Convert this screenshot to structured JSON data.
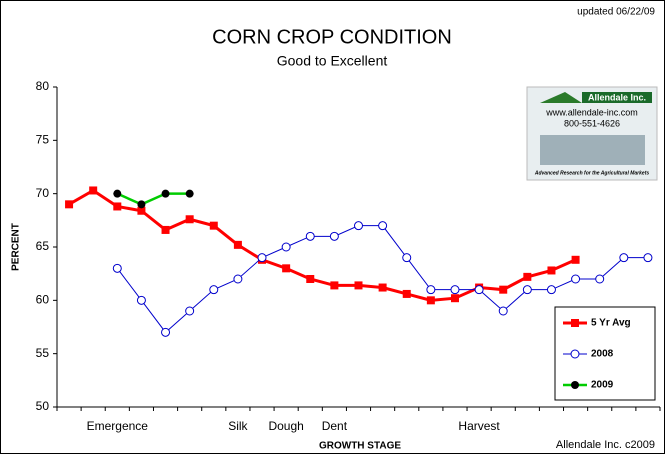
{
  "chart_data": {
    "type": "line",
    "title": "CORN CROP CONDITION",
    "subtitle": "Good to Excellent",
    "note": "updated 06/22/09",
    "credit": "Allendale Inc. c2009",
    "x_label": "GROWTH STAGE",
    "y_label": "PERCENT",
    "logo": {
      "name": "Allendale Inc.",
      "url": "www.allendale-inc.com",
      "phone": "800-551-4626",
      "tagline": "Advanced Research for the Agricultural Markets"
    },
    "categories": [
      null,
      null,
      "Emergence",
      null,
      null,
      null,
      null,
      "Silk",
      null,
      "Dough",
      null,
      "Dent",
      null,
      null,
      null,
      null,
      null,
      "Harvest",
      null,
      null,
      null,
      null,
      null,
      null,
      null
    ],
    "ylim": [
      50,
      80
    ],
    "yticks": [
      50,
      55,
      60,
      65,
      70,
      75,
      80
    ],
    "grid": false,
    "legend": "lower right",
    "series": [
      {
        "name": "5 Yr Avg",
        "color": "#ff0000",
        "marker": "square",
        "values": [
          69,
          70.3,
          68.8,
          68.4,
          66.6,
          67.6,
          67.0,
          65.2,
          63.8,
          63.0,
          62.0,
          61.4,
          61.4,
          61.2,
          60.6,
          60.0,
          60.2,
          61.2,
          61.0,
          62.2,
          62.8,
          63.8,
          null,
          null,
          null
        ]
      },
      {
        "name": "2008",
        "color": "#0000cc",
        "marker": "open-circle",
        "values": [
          null,
          null,
          63,
          60,
          57,
          59,
          61,
          62,
          64,
          65,
          66,
          66,
          67,
          67,
          64,
          61,
          61,
          61,
          59,
          61,
          61,
          62,
          62,
          64,
          64
        ]
      },
      {
        "name": "2009",
        "color": "#00cc00",
        "marker": "dot",
        "values": [
          null,
          null,
          70,
          69,
          70,
          70,
          null,
          null,
          null,
          null,
          null,
          null,
          null,
          null,
          null,
          null,
          null,
          null,
          null,
          null,
          null,
          null,
          null,
          null,
          null
        ]
      }
    ]
  }
}
